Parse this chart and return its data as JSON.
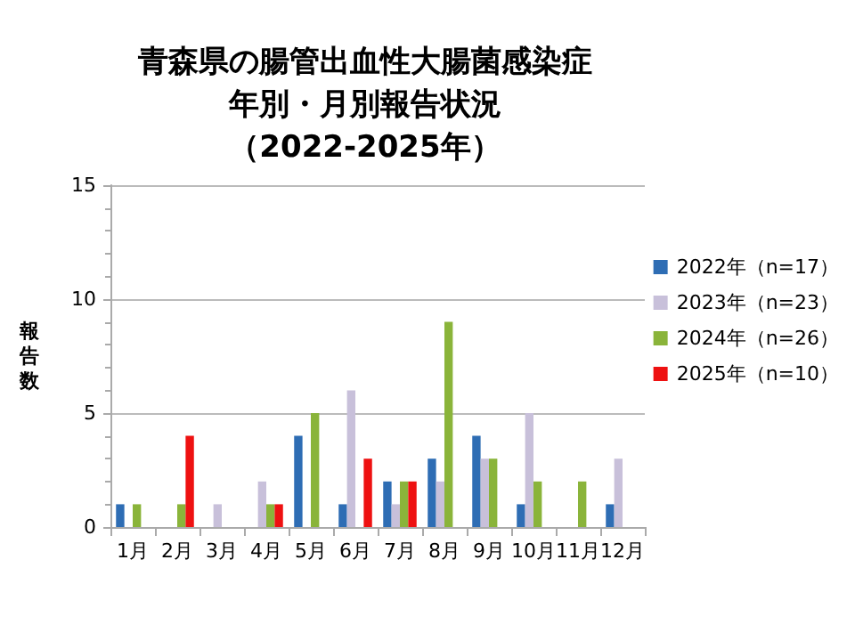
{
  "chart_data": {
    "type": "bar",
    "title": "青森県の腸管出血性大腸菌感染症",
    "subtitle": "年別・月別報告状況（2022-2025年）",
    "ylabel": "報告数",
    "categories": [
      "1月",
      "2月",
      "3月",
      "4月",
      "5月",
      "6月",
      "7月",
      "8月",
      "9月",
      "10月",
      "11月",
      "12月"
    ],
    "series": [
      {
        "name": "2022年（n=17）",
        "color": "#2e6db4",
        "values": [
          1,
          0,
          0,
          0,
          4,
          1,
          2,
          3,
          4,
          1,
          0,
          1
        ]
      },
      {
        "name": "2023年（n=23）",
        "color": "#c8c0da",
        "values": [
          0,
          0,
          1,
          2,
          0,
          6,
          1,
          2,
          3,
          5,
          0,
          3
        ]
      },
      {
        "name": "2024年（n=26）",
        "color": "#8ab43a",
        "values": [
          1,
          1,
          0,
          1,
          5,
          0,
          2,
          9,
          3,
          2,
          2,
          0
        ]
      },
      {
        "name": "2025年（n=10）",
        "color": "#ee1111",
        "values": [
          0,
          4,
          0,
          1,
          0,
          3,
          2,
          0,
          0,
          0,
          0,
          0
        ]
      }
    ],
    "ylim": [
      0,
      15
    ],
    "yticks": [
      0,
      5,
      10,
      15
    ],
    "grid": "y",
    "legend": "right"
  }
}
